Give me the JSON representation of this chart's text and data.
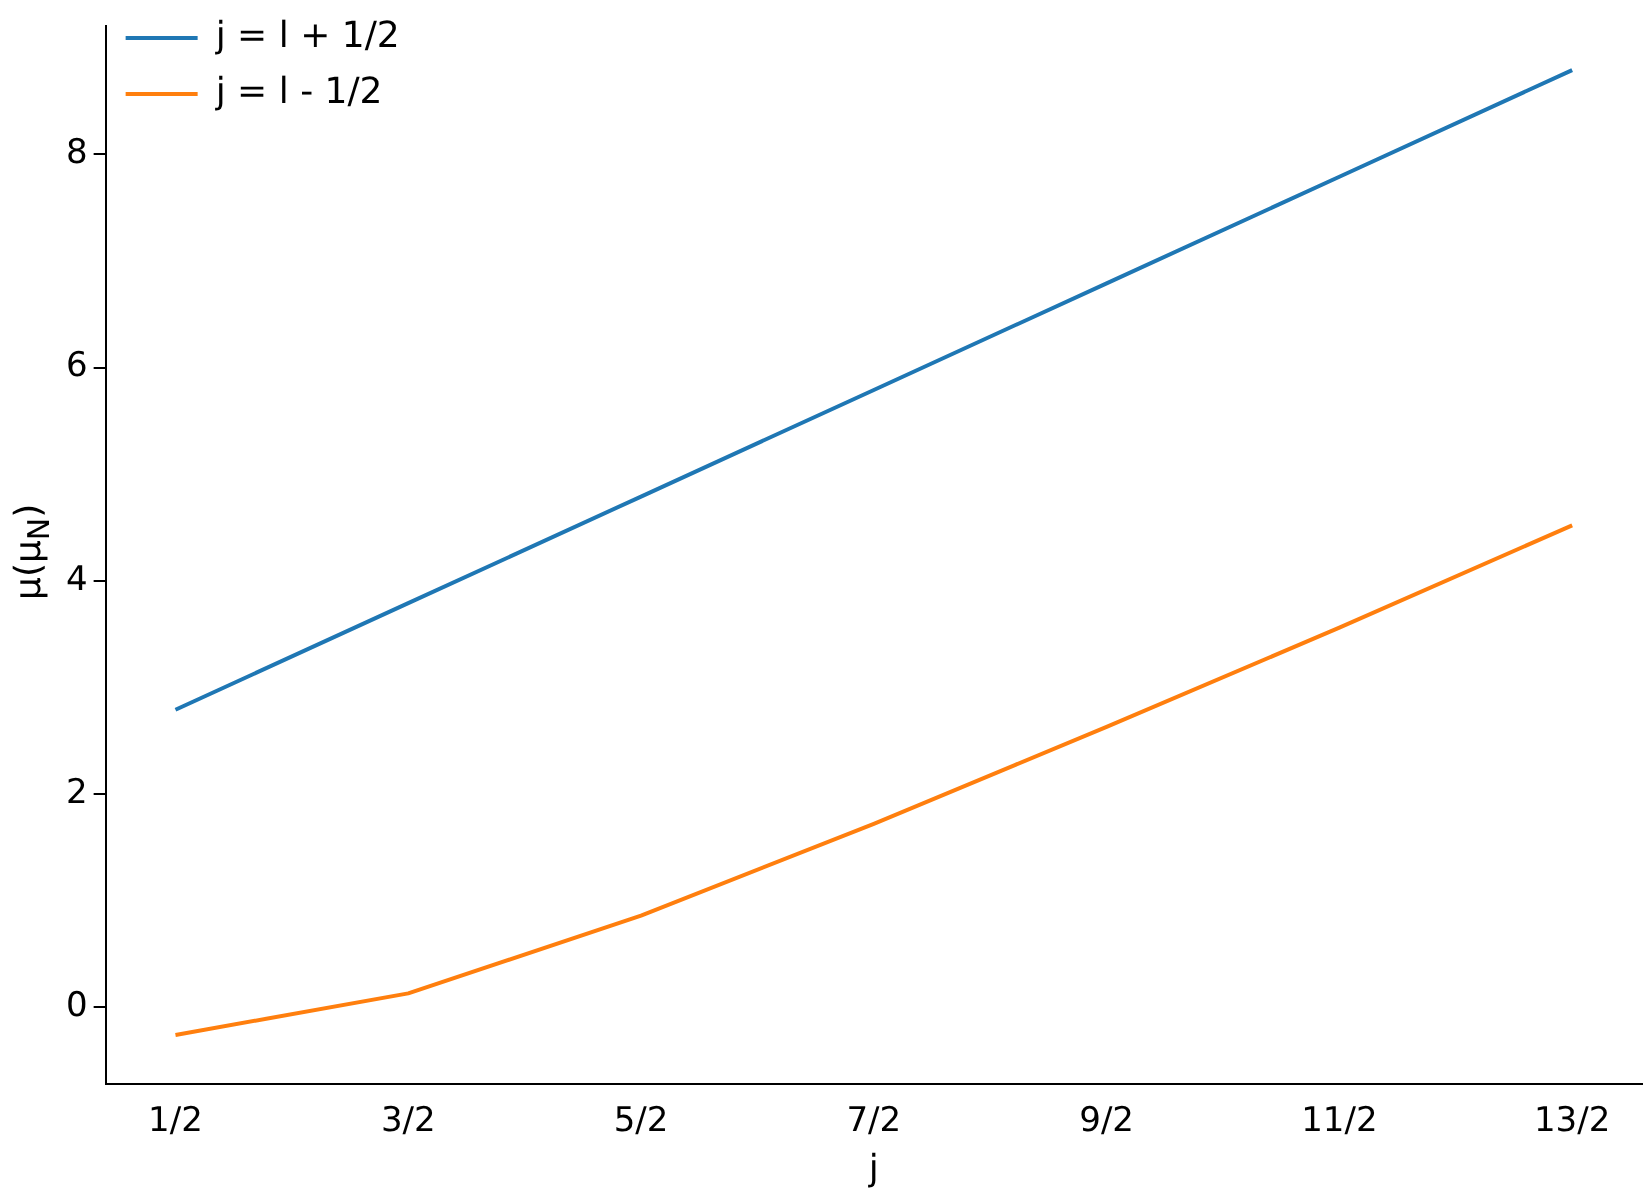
{
  "chart_data": {
    "type": "line",
    "xlabel": "j",
    "ylabel": "μ(μ$_{N}$)",
    "categories": [
      "1/2",
      "3/2",
      "5/2",
      "7/2",
      "9/2",
      "11/2",
      "13/2"
    ],
    "series": [
      {
        "name": "j = l + 1/2",
        "color": "#1f77b4",
        "values": [
          2.79,
          3.79,
          4.79,
          5.79,
          6.79,
          7.79,
          8.79
        ]
      },
      {
        "name": "j = l - 1/2",
        "color": "#ff7f0e",
        "values": [
          -0.26,
          0.13,
          0.86,
          1.72,
          2.63,
          3.56,
          4.52
        ]
      }
    ],
    "ylim": [
      -0.72,
      9.2
    ],
    "yticks": [
      0,
      2,
      4,
      6,
      8
    ],
    "legend": "top left",
    "grid": false
  }
}
